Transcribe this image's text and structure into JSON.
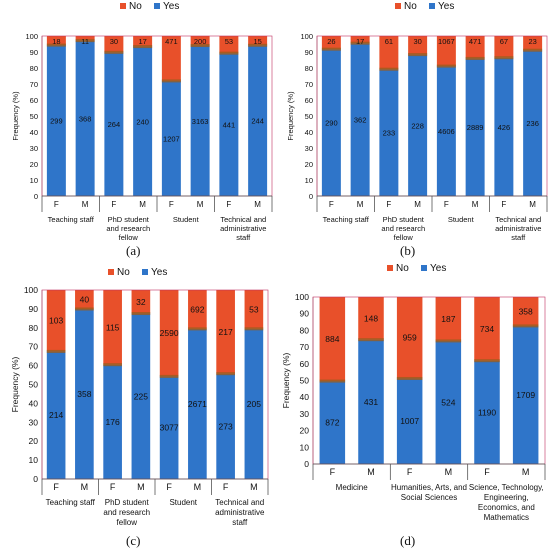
{
  "panels": [
    {
      "label": "(a)"
    },
    {
      "label": "(b)"
    },
    {
      "label": "(c)"
    },
    {
      "label": "(d)"
    }
  ],
  "colors": {
    "yes": "#2f75c9",
    "no": "#e8502a",
    "band": "#9a5d1e",
    "divider": "#8a3fc0",
    "frame": "#c03060"
  },
  "chart_data": [
    {
      "type": "bar",
      "stacked": "percent",
      "categories": [
        "F",
        "M",
        "F",
        "M",
        "F",
        "M",
        "F",
        "M"
      ],
      "groups": [
        "Teaching staff",
        "PhD student and research fellow",
        "Student",
        "Technical and administrative staff"
      ],
      "series": [
        {
          "name": "Yes",
          "values": [
            299,
            368,
            264,
            240,
            1207,
            3163,
            441,
            244
          ]
        },
        {
          "name": "No",
          "values": [
            18,
            11,
            30,
            17,
            471,
            200,
            53,
            15
          ]
        }
      ],
      "legend": [
        "No",
        "Yes"
      ],
      "ylabel": "Frequency (%)",
      "ylim": [
        0,
        100
      ],
      "yticks": [
        "0",
        "10",
        "20",
        "30",
        "40",
        "50",
        "60",
        "70",
        "80",
        "90",
        "100"
      ],
      "legend_position": "top-center",
      "grid": false
    },
    {
      "type": "bar",
      "stacked": "percent",
      "categories": [
        "F",
        "M",
        "F",
        "M",
        "F",
        "M",
        "F",
        "M"
      ],
      "groups": [
        "Teaching staff",
        "PhD student and research fellow",
        "Student",
        "Technical and administrative staff"
      ],
      "series": [
        {
          "name": "Yes",
          "values": [
            290,
            362,
            233,
            228,
            4606,
            2889,
            426,
            236
          ]
        },
        {
          "name": "No",
          "values": [
            26,
            17,
            61,
            30,
            1067,
            471,
            67,
            23
          ]
        }
      ],
      "legend": [
        "No",
        "Yes"
      ],
      "ylabel": "Frequency (%)",
      "ylim": [
        0,
        100
      ],
      "yticks": [
        "0",
        "10",
        "20",
        "30",
        "40",
        "50",
        "60",
        "70",
        "80",
        "90",
        "100"
      ],
      "legend_position": "top-center",
      "grid": false
    },
    {
      "type": "bar",
      "stacked": "percent",
      "categories": [
        "F",
        "M",
        "F",
        "M",
        "F",
        "M",
        "F",
        "M"
      ],
      "groups": [
        "Teaching staff",
        "PhD student and research fellow",
        "Student",
        "Technical and administrative staff"
      ],
      "series": [
        {
          "name": "Yes",
          "values": [
            214,
            358,
            176,
            225,
            3077,
            2671,
            273,
            205
          ]
        },
        {
          "name": "No",
          "values": [
            103,
            40,
            115,
            32,
            2590,
            692,
            217,
            53
          ]
        }
      ],
      "legend": [
        "No",
        "Yes"
      ],
      "ylabel": "Frequency (%)",
      "ylim": [
        0,
        100
      ],
      "yticks": [
        "0",
        "10",
        "20",
        "30",
        "40",
        "50",
        "60",
        "70",
        "80",
        "90",
        "100"
      ],
      "legend_position": "top-center",
      "grid": false
    },
    {
      "type": "bar",
      "stacked": "percent",
      "categories": [
        "F",
        "M",
        "F",
        "M",
        "F",
        "M"
      ],
      "groups": [
        "Medicine",
        "Humanities, Arts, and Social Sciences",
        "Science, Technology, Engineering, Economics, and Mathematics"
      ],
      "series": [
        {
          "name": "Yes",
          "values": [
            872,
            431,
            1007,
            524,
            1190,
            1709
          ]
        },
        {
          "name": "No",
          "values": [
            884,
            148,
            959,
            187,
            734,
            358
          ]
        }
      ],
      "legend": [
        "No",
        "Yes"
      ],
      "ylabel": "Frequency (%)",
      "ylim": [
        0,
        100
      ],
      "yticks": [
        "0",
        "10",
        "20",
        "30",
        "40",
        "50",
        "60",
        "70",
        "80",
        "90",
        "100"
      ],
      "legend_position": "top-center",
      "grid": false
    }
  ]
}
